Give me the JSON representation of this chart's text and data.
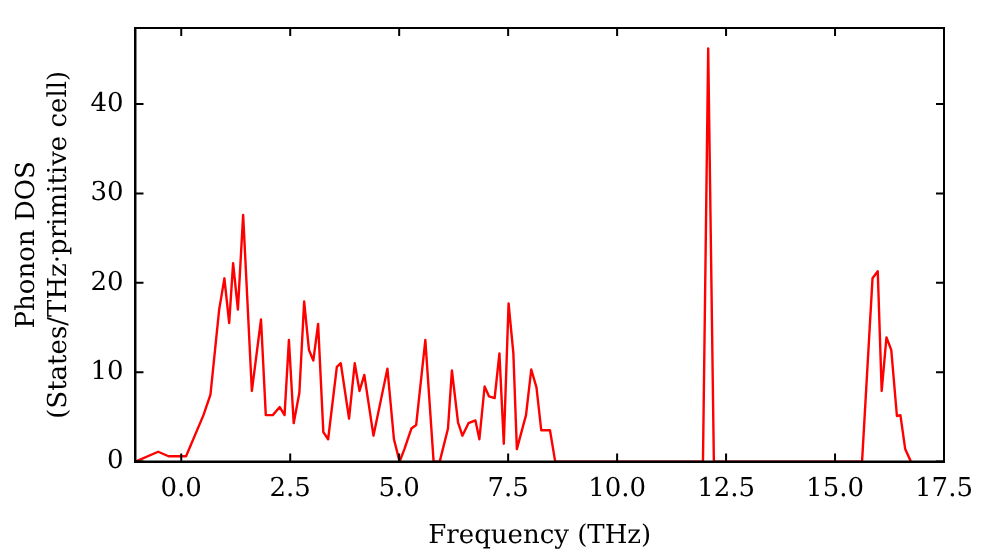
{
  "chart_data": {
    "type": "line",
    "xlabel": "Frequency (THz)",
    "ylabel": "Phonon DOS\n(States/THz·primitive cell)",
    "xlim": [
      -1.05,
      17.5
    ],
    "ylim": [
      0,
      48.5
    ],
    "xticks": [
      {
        "value": 0,
        "label": "0.0"
      },
      2.5,
      {
        "value": 5,
        "label": "5.0"
      },
      7.5,
      {
        "value": 10,
        "label": "10.0"
      },
      12.5,
      {
        "value": 15,
        "label": "15.0"
      },
      17.5
    ],
    "yticks": [
      0,
      10,
      20,
      30,
      40
    ],
    "grid": false,
    "legend": false,
    "marker": "none",
    "line_style": "solid",
    "series": [
      {
        "color": "#ff0000",
        "x": [
          -1.05,
          -0.53,
          -0.29,
          0.11,
          0.51,
          0.67,
          0.87,
          0.99,
          1.1,
          1.19,
          1.3,
          1.42,
          1.62,
          1.83,
          1.94,
          2.1,
          2.26,
          2.37,
          2.47,
          2.58,
          2.71,
          2.82,
          2.93,
          3.03,
          3.14,
          3.26,
          3.37,
          3.57,
          3.66,
          3.85,
          3.98,
          4.09,
          4.2,
          4.41,
          4.73,
          4.88,
          5.01,
          5.12,
          5.28,
          5.39,
          5.6,
          5.79,
          5.93,
          6.12,
          6.21,
          6.35,
          6.45,
          6.59,
          6.75,
          6.84,
          6.96,
          7.06,
          7.19,
          7.3,
          7.4,
          7.51,
          7.62,
          7.7,
          7.91,
          8.03,
          8.15,
          8.26,
          8.46,
          8.58,
          11.97,
          12.09,
          12.22,
          15.62,
          15.86,
          15.98,
          16.07,
          16.18,
          16.29,
          16.42,
          16.5,
          16.61,
          16.74
        ],
        "values": [
          0,
          1.1,
          0.6,
          0.6,
          5.2,
          7.5,
          17,
          20.5,
          15.5,
          22.2,
          17,
          27.6,
          7.9,
          15.9,
          5.2,
          5.2,
          6.1,
          5.2,
          13.6,
          4.3,
          7.7,
          17.9,
          12.5,
          11.3,
          15.4,
          3.3,
          2.5,
          10.6,
          11,
          4.8,
          11,
          7.9,
          9.7,
          2.9,
          10.4,
          2.5,
          0,
          1.4,
          3.7,
          4.1,
          13.6,
          0,
          0,
          3.7,
          10.2,
          4.4,
          2.9,
          4.3,
          4.6,
          2.5,
          8.4,
          7.3,
          7.1,
          12.1,
          2.0,
          17.7,
          12.1,
          1.4,
          5.2,
          10.3,
          8.3,
          3.5,
          3.5,
          0,
          0,
          46.2,
          0,
          0,
          20.5,
          21.3,
          7.9,
          13.9,
          12.5,
          5.1,
          5.2,
          1.4,
          0
        ]
      }
    ]
  }
}
